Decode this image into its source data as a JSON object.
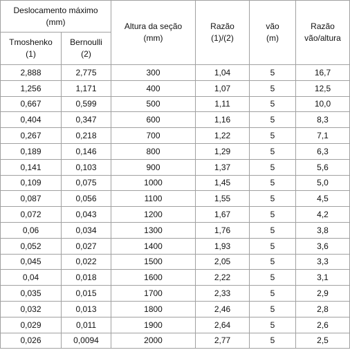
{
  "table": {
    "header": {
      "group": [
        "Deslocamento máximo",
        "(mm)"
      ],
      "sub": [
        [
          "Tmoshenko",
          "(1)"
        ],
        [
          "Bernoulli",
          "(2)"
        ]
      ],
      "columns": [
        [
          "Altura da seção",
          "(mm)"
        ],
        [
          "Razão",
          "(1)/(2)"
        ],
        [
          "vão",
          "(m)"
        ],
        [
          "Razão",
          "vão/altura"
        ]
      ]
    },
    "rows": [
      [
        "2,888",
        "2,775",
        "300",
        "1,04",
        "5",
        "16,7"
      ],
      [
        "1,256",
        "1,171",
        "400",
        "1,07",
        "5",
        "12,5"
      ],
      [
        "0,667",
        "0,599",
        "500",
        "1,11",
        "5",
        "10,0"
      ],
      [
        "0,404",
        "0,347",
        "600",
        "1,16",
        "5",
        "8,3"
      ],
      [
        "0,267",
        "0,218",
        "700",
        "1,22",
        "5",
        "7,1"
      ],
      [
        "0,189",
        "0,146",
        "800",
        "1,29",
        "5",
        "6,3"
      ],
      [
        "0,141",
        "0,103",
        "900",
        "1,37",
        "5",
        "5,6"
      ],
      [
        "0,109",
        "0,075",
        "1000",
        "1,45",
        "5",
        "5,0"
      ],
      [
        "0,087",
        "0,056",
        "1100",
        "1,55",
        "5",
        "4,5"
      ],
      [
        "0,072",
        "0,043",
        "1200",
        "1,67",
        "5",
        "4,2"
      ],
      [
        "0,06",
        "0,034",
        "1300",
        "1,76",
        "5",
        "3,8"
      ],
      [
        "0,052",
        "0,027",
        "1400",
        "1,93",
        "5",
        "3,6"
      ],
      [
        "0,045",
        "0,022",
        "1500",
        "2,05",
        "5",
        "3,3"
      ],
      [
        "0,04",
        "0,018",
        "1600",
        "2,22",
        "5",
        "3,1"
      ],
      [
        "0,035",
        "0,015",
        "1700",
        "2,33",
        "5",
        "2,9"
      ],
      [
        "0,032",
        "0,013",
        "1800",
        "2,46",
        "5",
        "2,8"
      ],
      [
        "0,029",
        "0,011",
        "1900",
        "2,64",
        "5",
        "2,6"
      ],
      [
        "0,026",
        "0,0094",
        "2000",
        "2,77",
        "5",
        "2,5"
      ]
    ]
  }
}
